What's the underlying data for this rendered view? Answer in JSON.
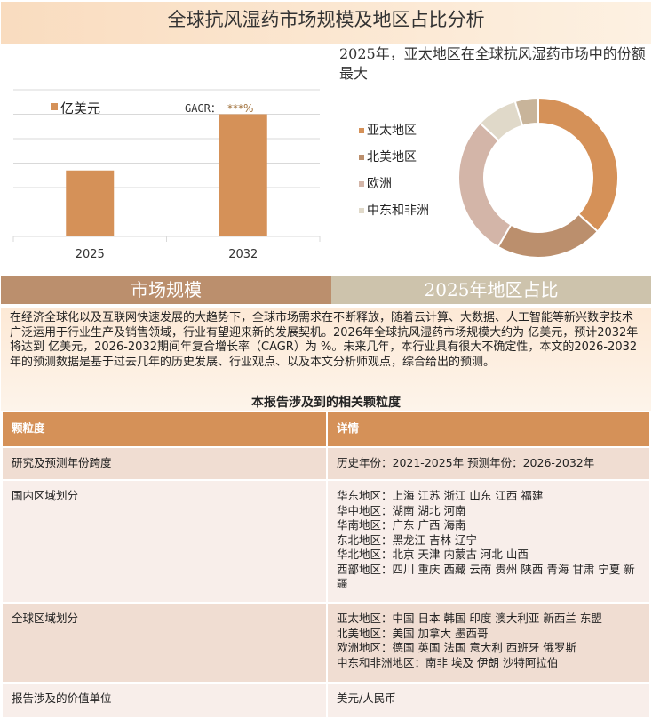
{
  "title": "全球抗风湿药市场规模及地区占比分析",
  "bar_legend": {
    "series_label": "亿美元",
    "cagr_label": "GAGR：",
    "cagr_value": "***%"
  },
  "pie_heading": "2025年，亚太地区在全球抗风湿药市场中的份额最大",
  "chart_data": [
    {
      "type": "bar",
      "categories": [
        "2025",
        "2032"
      ],
      "values": [
        2.7,
        5.0
      ],
      "series": [
        {
          "name": "亿美元",
          "values": [
            2.7,
            5.0
          ]
        }
      ],
      "ylim": [
        0,
        6
      ],
      "grid": true,
      "color": "#d59158",
      "note_values": "no y-axis labels shown; values are relative heights in gridline units"
    },
    {
      "type": "pie",
      "donut": true,
      "labels": [
        "亚太地区",
        "北美地区",
        "欧洲",
        "中东和非洲",
        ""
      ],
      "values": [
        36.7,
        21.7,
        28.6,
        8.3,
        4.7
      ],
      "colors": [
        "#d59158",
        "#bb8f6d",
        "#d3b5a8",
        "#e0d9c9",
        "#c8b49a"
      ],
      "legend_position": "left"
    }
  ],
  "bands": {
    "left": "市场规模",
    "right": "2025年地区占比"
  },
  "description": "在经济全球化以及互联网快速发展的大趋势下，全球市场需求在不断释放，随着云计算、大数据、人工智能等新兴数字技术广泛运用于行业生产及销售领域，行业有望迎来新的发展契机。2026年全球抗风湿药市场规模大约为 亿美元，预计2032年将达到 亿美元，2026-2032期间年复合增长率（CAGR）为 %。未来几年，本行业具有很大不确定性，本文的2026-2032年的预测数据是基于过去几年的历史发展、行业观点、以及本文分析师观点，综合给出的预测。",
  "table": {
    "caption": "本报告涉及到的相关颗粒度",
    "headers": [
      "颗粒度",
      "详情"
    ],
    "rows": [
      {
        "label": "研究及预测年份跨度",
        "lines": [
          "历史年份：2021-2025年 预测年份：2026-2032年"
        ]
      },
      {
        "label": "国内区域划分",
        "lines": [
          "华东地区：上海  江苏  浙江  山东  江西  福建",
          "华中地区：湖南  湖北  河南",
          "华南地区：广东  广西  海南",
          "东北地区：黑龙江  吉林  辽宁",
          "华北地区：北京  天津  内蒙古  河北  山西",
          "西部地区：四川  重庆  西藏  云南  贵州  陕西  青海  甘肃  宁夏  新疆"
        ]
      },
      {
        "label": "全球区域划分",
        "lines": [
          "亚太地区：中国  日本  韩国  印度  澳大利亚  新西兰  东盟",
          "北美地区：美国  加拿大  墨西哥",
          "欧洲地区：德国  英国  法国  意大利  西班牙  俄罗斯",
          "中东和非洲地区：南非  埃及  伊朗  沙特阿拉伯"
        ]
      },
      {
        "label": "报告涉及的价值单位",
        "lines": [
          "美元/人民币"
        ]
      }
    ]
  }
}
